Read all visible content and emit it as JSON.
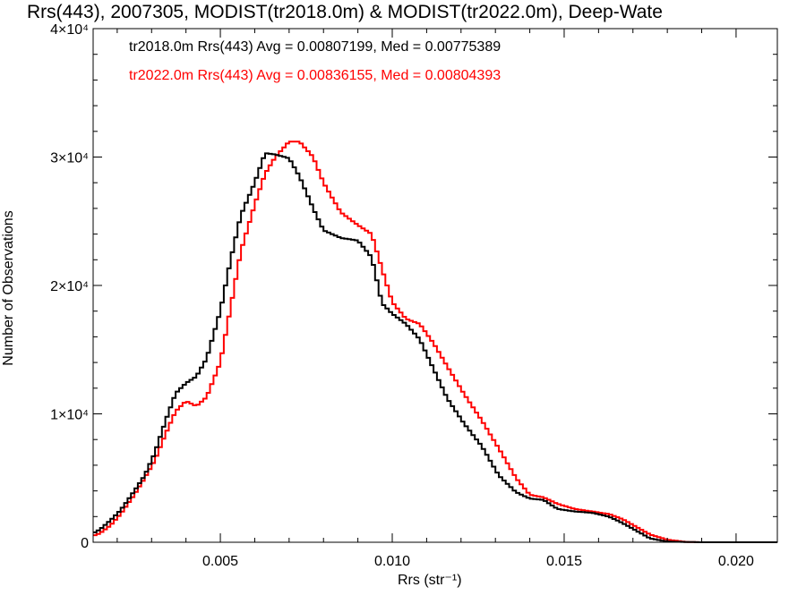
{
  "chart_data": {
    "type": "line",
    "title": "Rrs(443), 2007305, MODIST(tr2018.0m) & MODIST(tr2022.0m), Deep-Wate",
    "xlabel": "Rrs (str⁻¹)",
    "ylabel": "Number of Observations",
    "xlim": [
      0.0013,
      0.0212
    ],
    "ylim": [
      0,
      40000
    ],
    "x_ticks": [
      0.005,
      0.01,
      0.015,
      0.02
    ],
    "x_tick_labels": [
      "0.005",
      "0.010",
      "0.015",
      "0.020"
    ],
    "y_ticks": [
      0,
      10000,
      20000,
      30000,
      40000
    ],
    "y_tick_labels": [
      "0",
      "1×10⁴",
      "2×10⁴",
      "3×10⁴",
      "4×10⁴"
    ],
    "grid": false,
    "legend_placement": "top-left",
    "series": [
      {
        "name": "tr2018.0m Rrs(443) Avg = 0.00807199, Med = 0.00775389",
        "color": "#000000",
        "points": [
          [
            0.0013,
            700
          ],
          [
            0.0015,
            1000
          ],
          [
            0.0018,
            1700
          ],
          [
            0.0021,
            2500
          ],
          [
            0.0025,
            4000
          ],
          [
            0.0028,
            5200
          ],
          [
            0.0031,
            7000
          ],
          [
            0.0034,
            9400
          ],
          [
            0.0037,
            11600
          ],
          [
            0.004,
            12400
          ],
          [
            0.0043,
            12900
          ],
          [
            0.0046,
            14300
          ],
          [
            0.005,
            18000
          ],
          [
            0.0053,
            22000
          ],
          [
            0.0056,
            25500
          ],
          [
            0.006,
            28000
          ],
          [
            0.0063,
            30300
          ],
          [
            0.0066,
            30200
          ],
          [
            0.007,
            29900
          ],
          [
            0.0073,
            28500
          ],
          [
            0.0077,
            26000
          ],
          [
            0.008,
            24300
          ],
          [
            0.0085,
            23700
          ],
          [
            0.009,
            23500
          ],
          [
            0.0094,
            22200
          ],
          [
            0.0097,
            18600
          ],
          [
            0.01,
            17800
          ],
          [
            0.0104,
            17000
          ],
          [
            0.0108,
            15800
          ],
          [
            0.0112,
            13500
          ],
          [
            0.0116,
            11200
          ],
          [
            0.0121,
            9200
          ],
          [
            0.0126,
            7500
          ],
          [
            0.0131,
            5200
          ],
          [
            0.0136,
            3900
          ],
          [
            0.014,
            3400
          ],
          [
            0.0144,
            3300
          ],
          [
            0.0148,
            2600
          ],
          [
            0.0153,
            2400
          ],
          [
            0.0158,
            2300
          ],
          [
            0.0163,
            2000
          ],
          [
            0.0167,
            1500
          ],
          [
            0.0171,
            900
          ],
          [
            0.0175,
            300
          ],
          [
            0.018,
            50
          ],
          [
            0.019,
            0
          ],
          [
            0.0212,
            0
          ]
        ]
      },
      {
        "name": "tr2022.0m Rrs(443) Avg = 0.00836155, Med = 0.00804393",
        "color": "#ff0000",
        "points": [
          [
            0.0013,
            500
          ],
          [
            0.0015,
            700
          ],
          [
            0.0018,
            1300
          ],
          [
            0.0021,
            2200
          ],
          [
            0.0025,
            3700
          ],
          [
            0.0028,
            5000
          ],
          [
            0.0031,
            6400
          ],
          [
            0.0034,
            8400
          ],
          [
            0.0037,
            10200
          ],
          [
            0.004,
            11000
          ],
          [
            0.0043,
            10600
          ],
          [
            0.0046,
            11300
          ],
          [
            0.005,
            14000
          ],
          [
            0.0053,
            18300
          ],
          [
            0.0056,
            22700
          ],
          [
            0.006,
            26300
          ],
          [
            0.0063,
            28700
          ],
          [
            0.0066,
            30000
          ],
          [
            0.007,
            31200
          ],
          [
            0.0073,
            31200
          ],
          [
            0.0077,
            30000
          ],
          [
            0.008,
            28000
          ],
          [
            0.0085,
            25700
          ],
          [
            0.009,
            24700
          ],
          [
            0.0094,
            24000
          ],
          [
            0.0097,
            21300
          ],
          [
            0.01,
            18700
          ],
          [
            0.0104,
            17400
          ],
          [
            0.0108,
            17000
          ],
          [
            0.0112,
            15500
          ],
          [
            0.0116,
            13700
          ],
          [
            0.0121,
            11500
          ],
          [
            0.0126,
            9500
          ],
          [
            0.0131,
            7300
          ],
          [
            0.0136,
            5000
          ],
          [
            0.014,
            3700
          ],
          [
            0.0144,
            3500
          ],
          [
            0.0148,
            3000
          ],
          [
            0.0153,
            2600
          ],
          [
            0.0158,
            2400
          ],
          [
            0.0163,
            2200
          ],
          [
            0.0167,
            1800
          ],
          [
            0.0171,
            1200
          ],
          [
            0.0175,
            600
          ],
          [
            0.018,
            200
          ],
          [
            0.0185,
            30
          ],
          [
            0.019,
            0
          ],
          [
            0.0212,
            0
          ]
        ]
      }
    ]
  }
}
